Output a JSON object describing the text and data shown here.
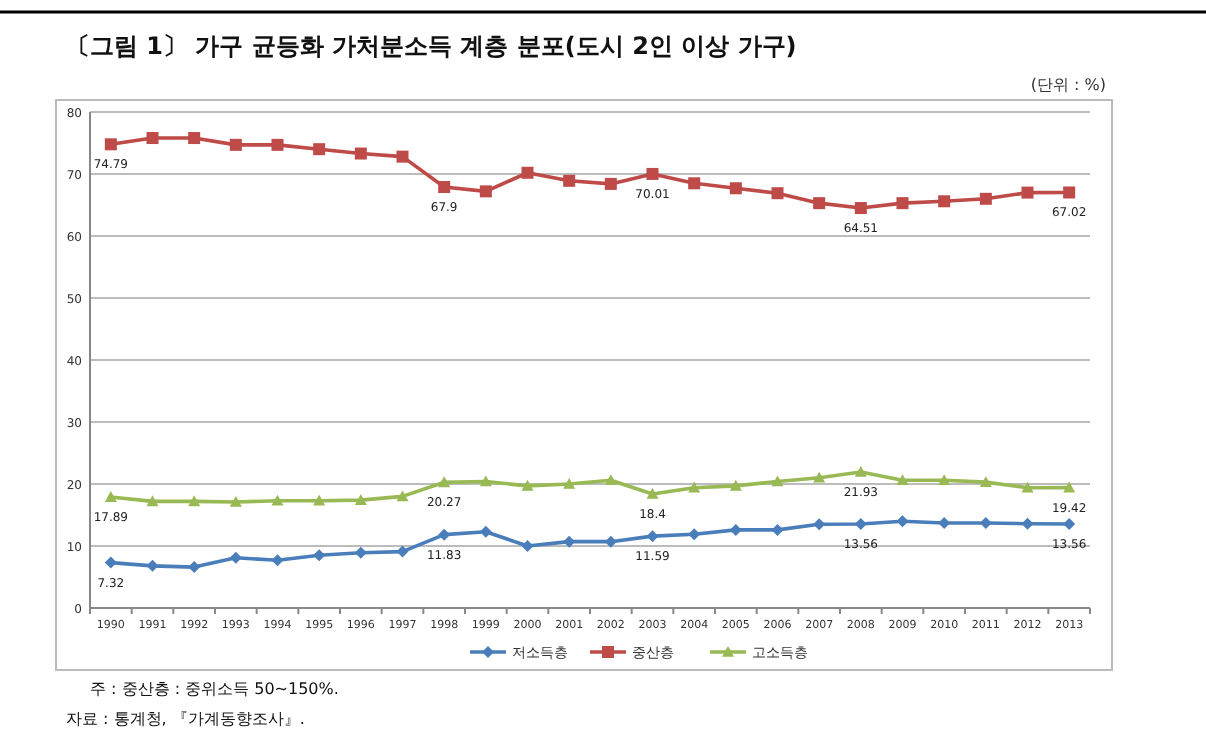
{
  "chart_data": {
    "type": "line",
    "title": "〔그림 1〕 가구 균등화 가처분소득 계층 분포(도시 2인 이상 가구)",
    "annotations": [
      "(단위 : %)",
      "주 : 중산층 : 중위소득 50∼150%.",
      "자료 : 통계청, 『가계동향조사』."
    ],
    "categories": [
      "1990",
      "1991",
      "1992",
      "1993",
      "1994",
      "1995",
      "1996",
      "1997",
      "1998",
      "1999",
      "2000",
      "2001",
      "2002",
      "2003",
      "2004",
      "2005",
      "2006",
      "2007",
      "2008",
      "2009",
      "2010",
      "2011",
      "2012",
      "2013"
    ],
    "series": [
      {
        "name": "저소득층",
        "color": "#4a7ebb",
        "marker": "diamond",
        "values": [
          7.32,
          6.8,
          6.6,
          8.1,
          7.7,
          8.5,
          8.9,
          9.1,
          11.83,
          12.3,
          10.0,
          10.7,
          10.7,
          11.59,
          11.9,
          12.6,
          12.6,
          13.5,
          13.56,
          14.0,
          13.7,
          13.7,
          13.6,
          13.56
        ],
        "value_labels": [
          "7.32",
          null,
          null,
          null,
          null,
          null,
          null,
          null,
          "11.83",
          null,
          null,
          null,
          null,
          "11.59",
          null,
          null,
          null,
          null,
          "13.56",
          null,
          null,
          null,
          null,
          "13.56"
        ]
      },
      {
        "name": "중산층",
        "color": "#be4b48",
        "marker": "square",
        "values": [
          74.79,
          75.8,
          75.8,
          74.7,
          74.7,
          74.0,
          73.3,
          72.8,
          67.9,
          67.2,
          70.2,
          68.9,
          68.4,
          70.01,
          68.5,
          67.7,
          66.9,
          65.3,
          64.51,
          65.3,
          65.6,
          66.0,
          67.0,
          67.02
        ],
        "value_labels": [
          "74.79",
          null,
          null,
          null,
          null,
          null,
          null,
          null,
          "67.9",
          null,
          null,
          null,
          null,
          "70.01",
          null,
          null,
          null,
          null,
          "64.51",
          null,
          null,
          null,
          null,
          "67.02"
        ]
      },
      {
        "name": "고소득층",
        "color": "#98b954",
        "marker": "triangle",
        "values": [
          17.89,
          17.2,
          17.2,
          17.1,
          17.3,
          17.3,
          17.4,
          18.0,
          20.27,
          20.4,
          19.7,
          20.0,
          20.6,
          18.4,
          19.4,
          19.7,
          20.4,
          21.0,
          21.93,
          20.6,
          20.6,
          20.3,
          19.4,
          19.42
        ],
        "value_labels": [
          "17.89",
          null,
          null,
          null,
          null,
          null,
          null,
          null,
          "20.27",
          null,
          null,
          null,
          null,
          "18.4",
          null,
          null,
          null,
          null,
          "21.93",
          null,
          null,
          null,
          null,
          "19.42"
        ]
      }
    ],
    "ylim": [
      0,
      80
    ],
    "yticks": [
      0,
      10,
      20,
      30,
      40,
      50,
      60,
      70,
      80
    ],
    "grid": "y",
    "legend": "bottom",
    "line_style": "solid"
  }
}
